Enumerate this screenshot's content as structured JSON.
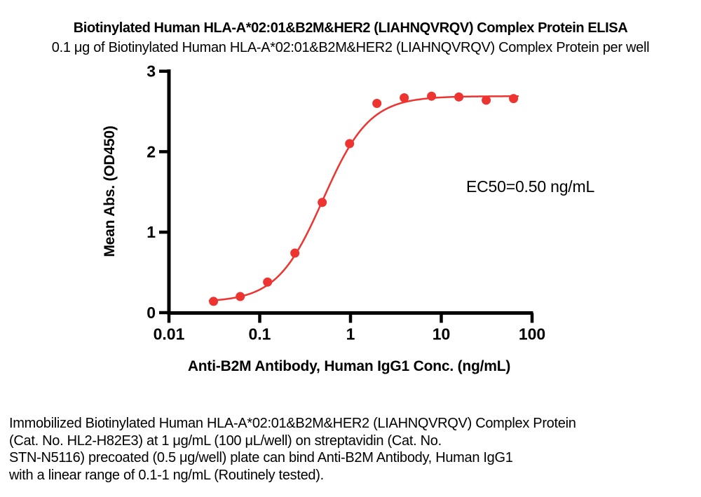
{
  "header": {
    "title": "Biotinylated Human HLA-A*02:01&B2M&HER2 (LIAHNQVRQV) Complex Protein ELISA",
    "subtitle": "0.1 μg of Biotinylated Human HLA-A*02:01&B2M&HER2 (LIAHNQVRQV) Complex Protein per well"
  },
  "chart_data": {
    "type": "scatter",
    "title": "Biotinylated Human HLA-A*02:01&B2M&HER2 (LIAHNQVRQV) Complex Protein ELISA",
    "xlabel": "Anti-B2M Antibody, Human IgG1 Conc. (ng/mL)",
    "ylabel": "Mean Abs. (OD450)",
    "x_scale": "log10",
    "xlim": [
      0.01,
      100
    ],
    "ylim": [
      0,
      3
    ],
    "x_ticks": [
      0.01,
      0.1,
      1,
      10,
      100
    ],
    "x_tick_labels": [
      "0.01",
      "0.1",
      "1",
      "10",
      "100"
    ],
    "y_ticks": [
      0,
      1,
      2,
      3
    ],
    "y_tick_labels": [
      "0",
      "1",
      "2",
      "3"
    ],
    "grid": false,
    "legend": "none",
    "series": [
      {
        "name": "Anti-B2M Antibody, Human IgG1",
        "x": [
          0.031,
          0.061,
          0.122,
          0.244,
          0.488,
          0.977,
          1.953,
          3.906,
          7.813,
          15.625,
          31.25,
          62.5
        ],
        "y": [
          0.14,
          0.2,
          0.38,
          0.74,
          1.37,
          2.1,
          2.6,
          2.67,
          2.69,
          2.68,
          2.64,
          2.66
        ],
        "color": "#ed3431",
        "marker": "circle",
        "marker_radius": 6.5
      }
    ],
    "fit_curve": {
      "model": "4PL",
      "bottom": 0.13,
      "top": 2.69,
      "ec50": 0.5,
      "hill": 1.7,
      "x_range": [
        0.028,
        70
      ],
      "color": "#ed3431"
    },
    "annotation": "EC50=0.50 ng/mL"
  },
  "footer": {
    "lines": [
      "Immobilized Biotinylated Human HLA-A*02:01&B2M&HER2 (LIAHNQVRQV) Complex Protein",
      "(Cat. No. HL2-H82E3) at 1 μg/mL (100 μL/well) on streptavidin (Cat. No.",
      "STN-N5116) precoated (0.5 μg/well) plate can bind Anti-B2M Antibody, Human IgG1",
      "with a linear range of 0.1-1 ng/mL (Routinely tested)."
    ]
  },
  "colors": {
    "accent": "#ed3431",
    "axis": "#000000",
    "text": "#000000",
    "background": "#ffffff"
  }
}
